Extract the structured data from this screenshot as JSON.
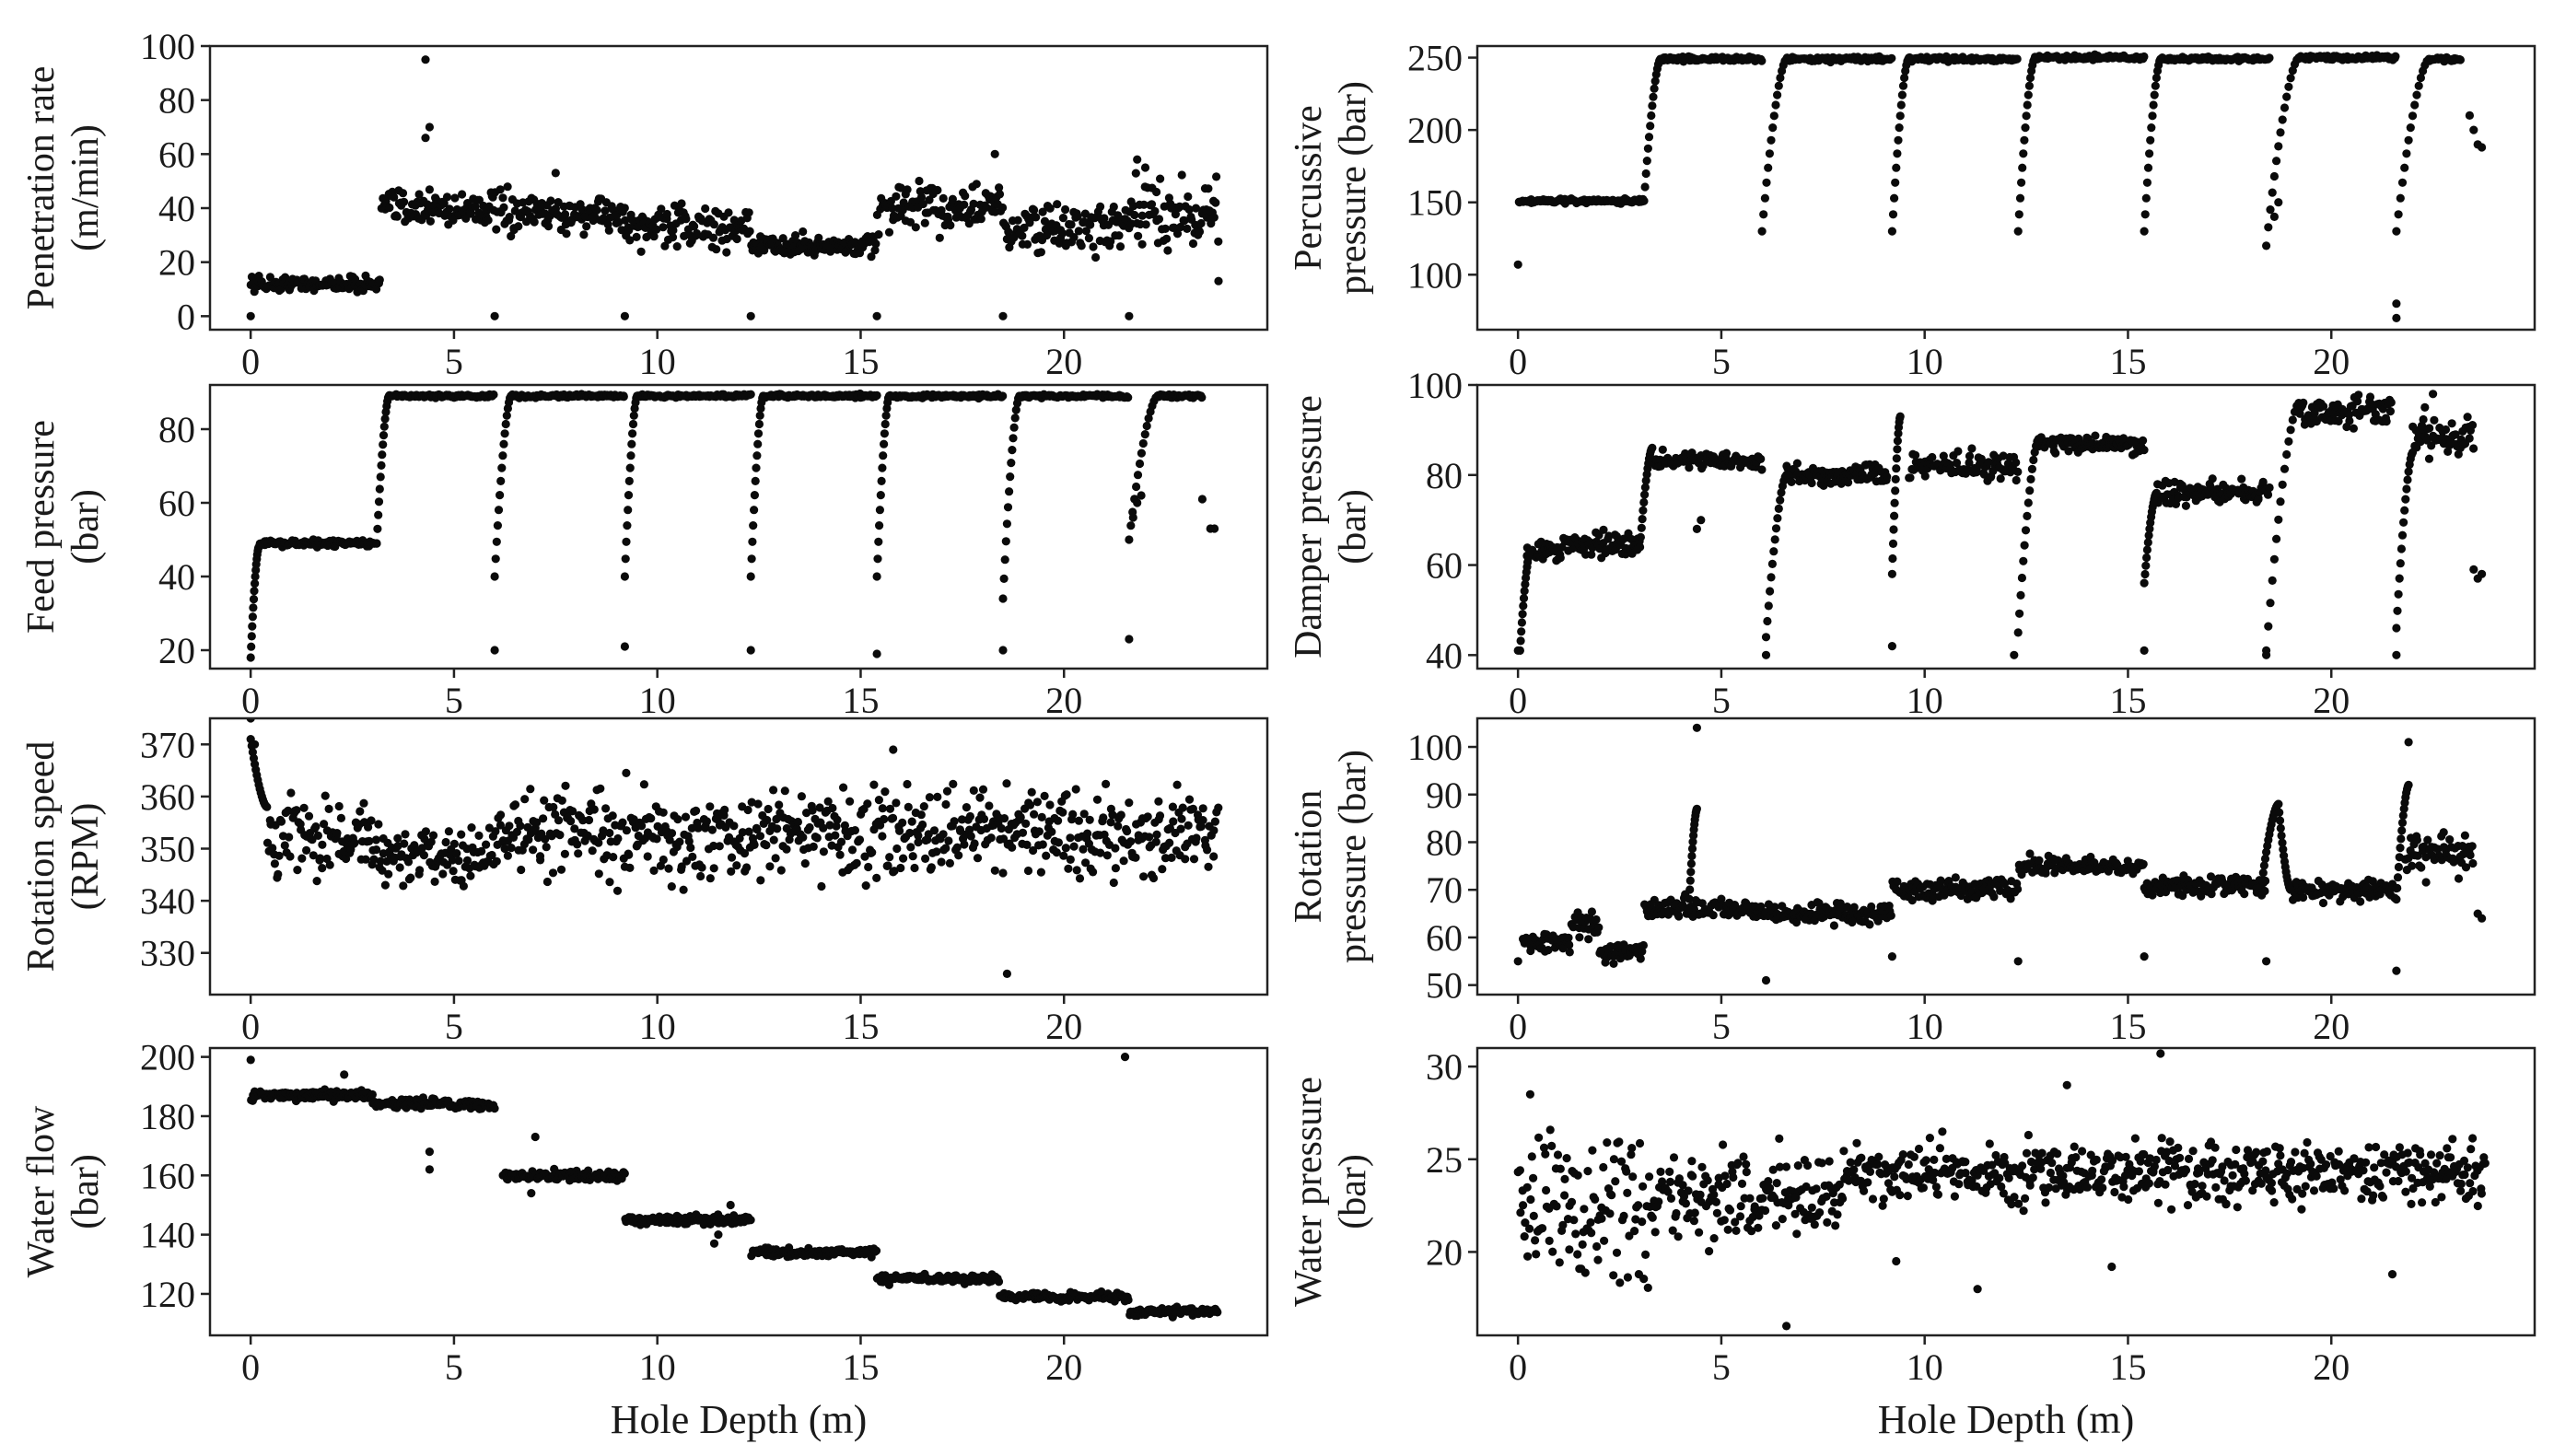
{
  "colors": {
    "marker": "#0a0a0a",
    "axis": "#222222",
    "background": "#ffffff"
  },
  "chart_data": [
    {
      "type": "scatter",
      "panel": "top-left",
      "ylabel_lines": [
        "Penetration rate",
        "(m/min)"
      ],
      "xlabel": "",
      "xlim": [
        -1,
        25
      ],
      "ylim": [
        -5,
        100
      ],
      "xticks": [
        0,
        5,
        10,
        15,
        20
      ],
      "yticks": [
        0,
        20,
        40,
        60,
        80,
        100
      ],
      "segments": [
        [
          0,
          3.2,
          12,
          2
        ],
        [
          3.2,
          6.0,
          40,
          5
        ],
        [
          6.0,
          9.2,
          38,
          5
        ],
        [
          9.2,
          12.3,
          33,
          5
        ],
        [
          12.3,
          15.4,
          26,
          3
        ],
        [
          15.4,
          18.5,
          40,
          6
        ],
        [
          18.5,
          21.6,
          32,
          6
        ],
        [
          21.6,
          23.8,
          38,
          8
        ]
      ],
      "rise": null,
      "drops": [
        [
          0,
          0
        ],
        [
          6.0,
          0
        ],
        [
          9.2,
          0
        ],
        [
          12.3,
          0
        ],
        [
          15.4,
          0
        ],
        [
          18.5,
          0
        ],
        [
          21.6,
          0
        ],
        [
          23.8,
          13
        ]
      ],
      "outliers": [
        [
          4.3,
          95
        ],
        [
          4.4,
          70
        ],
        [
          4.3,
          66
        ],
        [
          7.5,
          53
        ],
        [
          21.8,
          58
        ],
        [
          22.0,
          55
        ],
        [
          18.3,
          60
        ]
      ]
    },
    {
      "type": "scatter",
      "panel": "top-right",
      "ylabel_lines": [
        "Percussive",
        "pressure (bar)"
      ],
      "xlabel": "",
      "xlim": [
        -1,
        25
      ],
      "ylim": [
        62,
        258
      ],
      "xticks": [
        0,
        5,
        10,
        15,
        20
      ],
      "yticks": [
        100,
        150,
        200,
        250
      ],
      "segments": [
        [
          0,
          3.1,
          151,
          1
        ],
        [
          3.5,
          6.0,
          249,
          1
        ],
        [
          6.6,
          9.2,
          249,
          1
        ],
        [
          9.6,
          12.3,
          249,
          1
        ],
        [
          12.7,
          15.4,
          250,
          1
        ],
        [
          15.8,
          18.5,
          249,
          1
        ],
        [
          19.2,
          21.6,
          250,
          1
        ],
        [
          22.4,
          23.2,
          249,
          1
        ]
      ],
      "rise": [
        [
          3.1,
          151,
          3.5,
          249
        ],
        [
          6.0,
          130,
          6.6,
          249
        ],
        [
          9.2,
          130,
          9.6,
          249
        ],
        [
          12.3,
          130,
          12.7,
          249
        ],
        [
          15.4,
          130,
          15.8,
          249
        ],
        [
          18.4,
          120,
          19.2,
          250
        ],
        [
          21.6,
          130,
          22.4,
          249
        ]
      ],
      "drops": [
        [
          0,
          107
        ],
        [
          21.6,
          70
        ],
        [
          21.6,
          80
        ],
        [
          23.6,
          190
        ],
        [
          23.7,
          188
        ]
      ],
      "outliers": [
        [
          18.6,
          140
        ],
        [
          18.7,
          150
        ],
        [
          23.4,
          210
        ],
        [
          23.5,
          200
        ]
      ]
    },
    {
      "type": "scatter",
      "panel": "mid-left",
      "ylabel_lines": [
        "Feed pressure",
        "(bar)"
      ],
      "xlabel": "",
      "xlim": [
        -1,
        25
      ],
      "ylim": [
        15,
        92
      ],
      "xticks": [
        0,
        5,
        10,
        15,
        20
      ],
      "yticks": [
        20,
        40,
        60,
        80
      ],
      "segments": [
        [
          0.2,
          3.1,
          49,
          0.6
        ],
        [
          3.4,
          6.0,
          89,
          0.3
        ],
        [
          6.4,
          9.2,
          89,
          0.3
        ],
        [
          9.5,
          12.3,
          89,
          0.3
        ],
        [
          12.6,
          15.4,
          89,
          0.3
        ],
        [
          15.7,
          18.5,
          89,
          0.3
        ],
        [
          18.9,
          21.6,
          89,
          0.3
        ],
        [
          22.3,
          23.4,
          89,
          0.3
        ]
      ],
      "rise": [
        [
          0,
          18,
          0.2,
          48
        ],
        [
          3.1,
          49,
          3.4,
          89
        ],
        [
          6.0,
          40,
          6.4,
          89
        ],
        [
          9.2,
          40,
          9.5,
          89
        ],
        [
          12.3,
          40,
          12.6,
          89
        ],
        [
          15.4,
          40,
          15.7,
          89
        ],
        [
          18.5,
          34,
          18.9,
          89
        ],
        [
          21.6,
          50,
          22.3,
          89
        ]
      ],
      "drops": [
        [
          6.0,
          20
        ],
        [
          9.2,
          21
        ],
        [
          12.3,
          20
        ],
        [
          15.4,
          19
        ],
        [
          18.5,
          20
        ],
        [
          21.6,
          23
        ],
        [
          23.4,
          61
        ],
        [
          23.6,
          53
        ],
        [
          23.7,
          53
        ]
      ],
      "outliers": [
        [
          21.8,
          60
        ],
        [
          21.9,
          62
        ],
        [
          21.7,
          56
        ]
      ]
    },
    {
      "type": "scatter",
      "panel": "mid-right",
      "ylabel_lines": [
        "Damper pressure",
        "(bar)"
      ],
      "xlabel": "",
      "xlim": [
        -1,
        25
      ],
      "ylim": [
        37,
        100
      ],
      "xticks": [
        0,
        5,
        10,
        15,
        20
      ],
      "yticks": [
        40,
        60,
        80,
        100
      ],
      "segments": [
        [
          0.2,
          1.1,
          63,
          1.5
        ],
        [
          1.1,
          3.0,
          65,
          2
        ],
        [
          3.3,
          6.0,
          83,
          1.5
        ],
        [
          6.6,
          9.1,
          80,
          1.5
        ],
        [
          9.6,
          12.3,
          82,
          2
        ],
        [
          12.8,
          15.4,
          87,
          1.5
        ],
        [
          15.7,
          18.5,
          76,
          2
        ],
        [
          19.2,
          21.5,
          94,
          2
        ],
        [
          22.0,
          23.5,
          88,
          3
        ]
      ],
      "rise": [
        [
          0.05,
          41,
          0.3,
          63
        ],
        [
          3.0,
          64,
          3.3,
          86
        ],
        [
          6.1,
          44,
          6.6,
          80
        ],
        [
          9.2,
          58,
          9.4,
          93
        ],
        [
          12.3,
          45,
          12.8,
          88
        ],
        [
          15.4,
          56,
          15.7,
          76
        ],
        [
          18.4,
          41,
          19.2,
          96
        ],
        [
          21.6,
          46,
          22.0,
          85
        ]
      ],
      "drops": [
        [
          0,
          41
        ],
        [
          6.1,
          40
        ],
        [
          9.2,
          42
        ],
        [
          12.2,
          40
        ],
        [
          15.4,
          41
        ],
        [
          18.4,
          40
        ],
        [
          21.6,
          40
        ],
        [
          23.5,
          59
        ],
        [
          23.6,
          57
        ],
        [
          23.7,
          58
        ]
      ],
      "outliers": [
        [
          4.5,
          70
        ],
        [
          4.4,
          68
        ],
        [
          22.5,
          98
        ],
        [
          22.3,
          95
        ]
      ]
    },
    {
      "type": "scatter",
      "panel": "mid-left-2",
      "ylabel_lines": [
        "Rotation speed",
        "(RPM)"
      ],
      "xlabel": "",
      "xlim": [
        -1,
        25
      ],
      "ylim": [
        322,
        375
      ],
      "xticks": [
        0,
        5,
        10,
        15,
        20
      ],
      "yticks": [
        330,
        340,
        350,
        360,
        370
      ],
      "segments": [
        [
          0.4,
          3.0,
          352,
          5
        ],
        [
          3.0,
          6.0,
          349,
          4
        ],
        [
          6.0,
          23.8,
          353,
          6
        ]
      ],
      "rise": [
        [
          0,
          371,
          0.4,
          358
        ]
      ],
      "drops": [],
      "outliers": [
        [
          0,
          375
        ],
        [
          0.1,
          370
        ],
        [
          18.6,
          326
        ],
        [
          15.8,
          369
        ]
      ]
    },
    {
      "type": "scatter",
      "panel": "mid-right-2",
      "ylabel_lines": [
        "Rotation",
        "pressure (bar)"
      ],
      "xlabel": "",
      "xlim": [
        -1,
        25
      ],
      "ylim": [
        48,
        106
      ],
      "xticks": [
        0,
        5,
        10,
        15,
        20
      ],
      "yticks": [
        50,
        60,
        70,
        80,
        90,
        100
      ],
      "segments": [
        [
          0.1,
          1.3,
          59,
          1.5
        ],
        [
          1.3,
          2.0,
          63,
          2
        ],
        [
          2.0,
          3.1,
          57,
          1.2
        ],
        [
          3.1,
          6.0,
          66,
          1.5
        ],
        [
          6.0,
          9.2,
          65,
          1.5
        ],
        [
          9.2,
          12.3,
          70,
          1.5
        ],
        [
          12.3,
          15.4,
          75,
          1.2
        ],
        [
          15.4,
          18.4,
          71,
          1.5
        ],
        [
          19.0,
          21.6,
          70,
          1.5
        ],
        [
          21.8,
          23.5,
          78,
          3
        ]
      ],
      "rise": [
        [
          4.2,
          66,
          4.4,
          87
        ],
        [
          18.3,
          72,
          18.7,
          88
        ],
        [
          18.7,
          88,
          19.0,
          70
        ],
        [
          21.6,
          68,
          21.9,
          92
        ]
      ],
      "drops": [
        [
          0,
          55
        ],
        [
          6.1,
          51
        ],
        [
          9.2,
          56
        ],
        [
          12.3,
          55
        ],
        [
          15.4,
          56
        ],
        [
          18.4,
          55
        ],
        [
          21.6,
          53
        ],
        [
          23.6,
          65
        ],
        [
          23.7,
          64
        ]
      ],
      "outliers": [
        [
          4.4,
          104
        ],
        [
          21.9,
          101
        ]
      ]
    },
    {
      "type": "scatter",
      "panel": "bottom-left",
      "ylabel_lines": [
        "Water flow",
        "(bar)"
      ],
      "xlabel": "Hole Depth (m)",
      "xlim": [
        -1,
        25
      ],
      "ylim": [
        106,
        203
      ],
      "xticks": [
        0,
        5,
        10,
        15,
        20
      ],
      "yticks": [
        120,
        140,
        160,
        180,
        200
      ],
      "segments": [
        [
          0,
          3.0,
          187,
          1.2
        ],
        [
          3.0,
          6.0,
          184,
          1.2
        ],
        [
          6.2,
          9.2,
          160,
          1.2
        ],
        [
          9.2,
          12.3,
          145,
          1
        ],
        [
          12.3,
          15.4,
          134,
          1
        ],
        [
          15.4,
          18.4,
          125,
          1
        ],
        [
          18.4,
          21.6,
          119,
          1
        ],
        [
          21.6,
          23.8,
          114,
          1
        ]
      ],
      "rise": null,
      "drops": [
        [
          4.4,
          162
        ],
        [
          4.4,
          168
        ],
        [
          6.9,
          154
        ],
        [
          11.4,
          137
        ],
        [
          11.5,
          140
        ],
        [
          15.7,
          123
        ]
      ],
      "outliers": [
        [
          0,
          199
        ],
        [
          2.3,
          194
        ],
        [
          21.5,
          200
        ],
        [
          7.0,
          173
        ],
        [
          11.8,
          150
        ]
      ]
    },
    {
      "type": "scatter",
      "panel": "bottom-right",
      "ylabel_lines": [
        "Water pressure",
        "(bar)"
      ],
      "xlabel": "Hole Depth (m)",
      "xlim": [
        -1,
        25
      ],
      "ylim": [
        15.5,
        31
      ],
      "xticks": [
        0,
        5,
        10,
        15,
        20
      ],
      "yticks": [
        20,
        25,
        30
      ],
      "segments": [
        [
          0,
          3.2,
          22.5,
          2.5
        ],
        [
          3.2,
          8.0,
          23.0,
          1.5
        ],
        [
          8.0,
          23.8,
          24.3,
          1.1
        ]
      ],
      "rise": null,
      "drops": [],
      "outliers": [
        [
          0.3,
          28.5
        ],
        [
          6.6,
          16.0
        ],
        [
          11.3,
          18.0
        ],
        [
          13.5,
          29.0
        ],
        [
          15.8,
          30.7
        ],
        [
          21.5,
          18.8
        ],
        [
          14.6,
          19.2
        ],
        [
          9.3,
          19.5
        ]
      ]
    }
  ]
}
